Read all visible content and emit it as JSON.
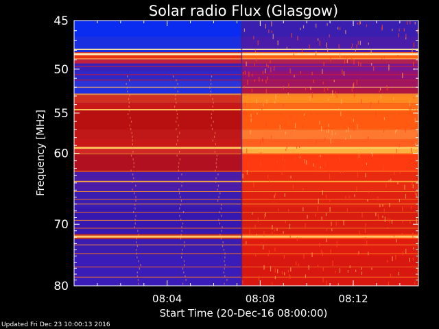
{
  "chart_data": {
    "type": "heatmap",
    "title": "Solar radio Flux (Glasgow)",
    "ylabel": "Frequency [MHz]",
    "xlabel": "Start Time (20-Dec-16 08:00:00)",
    "y_ticks": [
      "45",
      "50",
      "55",
      "60",
      "70",
      "80"
    ],
    "y_tick_values": [
      45,
      50,
      55,
      60,
      70,
      80
    ],
    "ylim": [
      45,
      80
    ],
    "y_scale": "log",
    "x_ticks": [
      "08:04",
      "08:08",
      "08:12"
    ],
    "x_tick_values_min": [
      4,
      8,
      12
    ],
    "xlim_min": [
      0,
      14.8
    ],
    "transition_time_min": 7.2,
    "colors": {
      "low": "#2a1aa8",
      "mid": "#d81010",
      "high": "#ff4a10",
      "hot": "#ffd060",
      "background": "#000000"
    }
  },
  "footer": {
    "updated": "Updated Fri Dec 23 10:00:13 2016"
  }
}
